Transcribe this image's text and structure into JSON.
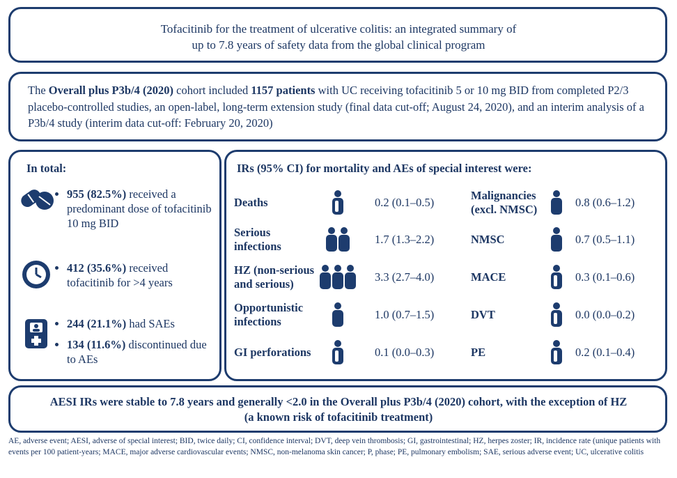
{
  "title": {
    "lines": [
      "Tofacitinib for the treatment of ulcerative colitis: an integrated summary of",
      "up to 7.8 years of safety data from the global clinical program"
    ]
  },
  "intro": {
    "segments": [
      {
        "text": "The "
      },
      {
        "text": "Overall plus P3b/4 (2020)",
        "bold": true
      },
      {
        "text": " cohort included "
      },
      {
        "text": "1157 patients",
        "bold": true
      },
      {
        "text": " with UC receiving tofacitinib 5 or 10 mg BID from completed P2/3 placebo-controlled studies, an open-label, long-term extension study (final data cut-off; August 24, 2020), and an interim analysis of a P3b/4 study (interim data cut-off: February 20, 2020)"
      }
    ]
  },
  "totals": {
    "heading": "In total:",
    "groups": [
      {
        "bullets": [
          {
            "segments": [
              {
                "text": "955 (82.5%)",
                "bold": true
              },
              {
                "text": " received a predominant dose of tofacitinib 10 mg BID"
              }
            ]
          }
        ]
      },
      {
        "bullets": [
          {
            "segments": [
              {
                "text": "412 (35.6%)",
                "bold": true
              },
              {
                "text": " received tofacitinib for >4 years"
              }
            ]
          }
        ]
      },
      {
        "bullets": [
          {
            "segments": [
              {
                "text": "244 (21.1%)",
                "bold": true
              },
              {
                "text": " had SAEs"
              }
            ]
          },
          {
            "segments": [
              {
                "text": "134 (11.6%)",
                "bold": true
              },
              {
                "text": " discontinued due to AEs"
              }
            ]
          }
        ]
      }
    ]
  },
  "rates": {
    "heading": "IRs (95% CI) for mortality and AEs of special interest were:",
    "rows": [
      {
        "label": "Deaths",
        "value": "0.2 (0.1–0.5)"
      },
      {
        "label": "Serious infections",
        "value": "1.7 (1.3–2.2)"
      },
      {
        "label": "HZ (non-serious and serious)",
        "value": "3.3 (2.7–4.0)"
      },
      {
        "label": "Opportunistic infections",
        "value": "1.0 (0.7–1.5)"
      },
      {
        "label": "GI perforations",
        "value": "0.1 (0.0–0.3)"
      },
      {
        "label": "Malignancies (excl. NMSC)",
        "value": "0.8 (0.6–1.2)"
      },
      {
        "label": "NMSC",
        "value": "0.7 (0.5–1.1)"
      },
      {
        "label": "MACE",
        "value": "0.3 (0.1–0.6)"
      },
      {
        "label": "DVT",
        "value": "0.0 (0.0–0.2)"
      },
      {
        "label": "PE",
        "value": "0.2 (0.1–0.4)"
      }
    ]
  },
  "conclusion": {
    "text": "AESI IRs were stable to 7.8 years and generally <2.0 in the Overall plus P3b/4 (2020) cohort, with the exception of HZ (a known risk of tofacitinib treatment)"
  },
  "footnote": {
    "text": "AE, adverse event; AESI, adverse of special interest; BID, twice daily; CI, confidence interval; DVT, deep vein thrombosis; GI, gastrointestinal; HZ, herpes zoster; IR, incidence rate (unique patients with events per 100 patient-years; MACE, major adverse cardiovascular events; NMSC, non-melanoma skin cancer; P, phase; PE, pulmonary embolism; SAE, serious adverse event; UC, ulcerative colitis"
  }
}
